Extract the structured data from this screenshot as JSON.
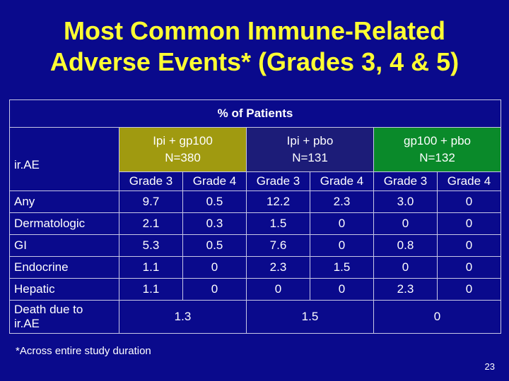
{
  "title": {
    "line1": "Most Common Immune-Related",
    "line2": "Adverse Events* (Grades 3, 4 & 5)"
  },
  "table": {
    "pct_header": "% of Patients",
    "first_col_header": "ir.AE",
    "groups": [
      {
        "line1": "Ipi + gp100",
        "line2": "N=380",
        "color": "#a09a10"
      },
      {
        "line1": "Ipi + pbo",
        "line2": "N=131",
        "color": "#1c1c78"
      },
      {
        "line1": "gp100 + pbo",
        "line2": "N=132",
        "color": "#0a8a2a"
      }
    ],
    "grade_labels": [
      "Grade 3",
      "Grade 4",
      "Grade 3",
      "Grade 4",
      "Grade 3",
      "Grade 4"
    ],
    "rows": [
      {
        "label": "Any",
        "values": [
          "9.7",
          "0.5",
          "12.2",
          "2.3",
          "3.0",
          "0"
        ]
      },
      {
        "label": "Dermatologic",
        "values": [
          "2.1",
          "0.3",
          "1.5",
          "0",
          "0",
          "0"
        ]
      },
      {
        "label": "GI",
        "values": [
          "5.3",
          "0.5",
          "7.6",
          "0",
          "0.8",
          "0"
        ]
      },
      {
        "label": "Endocrine",
        "values": [
          "1.1",
          "0",
          "2.3",
          "1.5",
          "0",
          "0"
        ]
      },
      {
        "label": "Hepatic",
        "values": [
          "1.1",
          "0",
          "0",
          "0",
          "2.3",
          "0"
        ]
      }
    ],
    "death_row": {
      "label_line1": "Death due to",
      "label_line2": "ir.AE",
      "values": [
        "1.3",
        "1.5",
        "0"
      ]
    }
  },
  "footnote": "*Across entire study duration",
  "page_number": "23"
}
